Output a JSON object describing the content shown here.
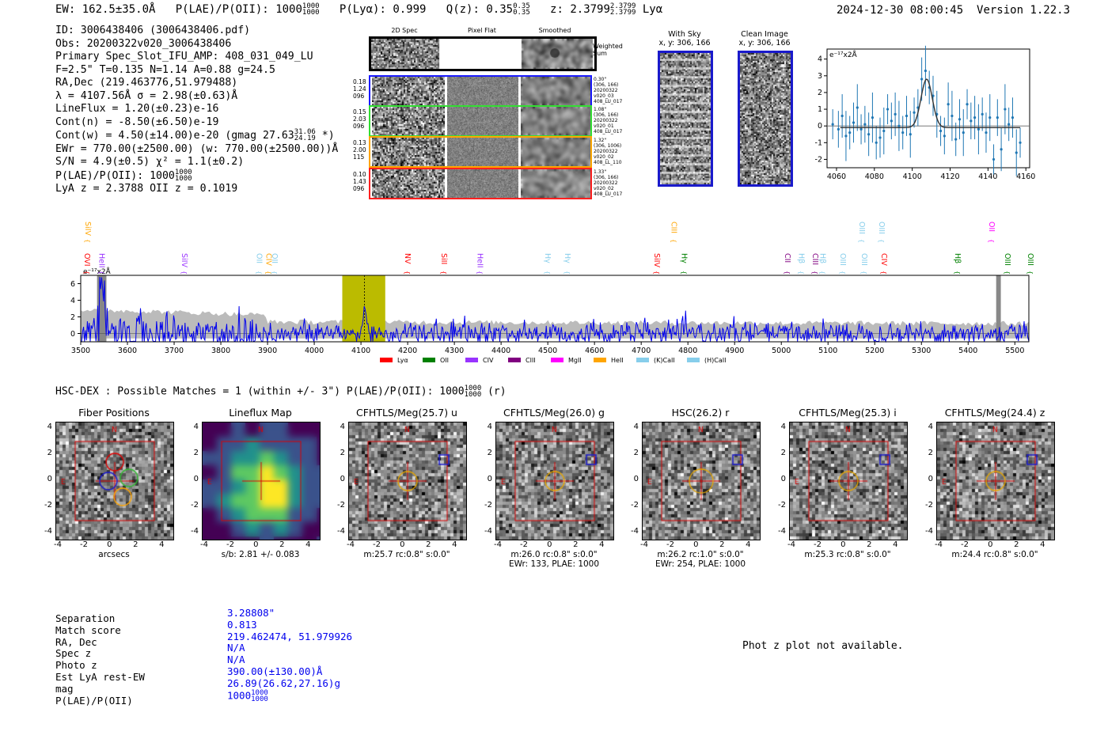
{
  "header": {
    "ew": "EW: 162.5±35.0Å",
    "plae_label": "P(LAE)/P(OII):",
    "plae_value": "1000",
    "plae_hi": "1000",
    "plae_lo": "1000",
    "plya": "P(Lyα): 0.999",
    "qz_label": "Q(z): 0.35",
    "qz_hi": "0.35",
    "qz_lo": "0.35",
    "z_label": "z: 2.3799",
    "z_hi": "2.3799",
    "z_lo": "2.3799",
    "z_line": "Lyα",
    "timestamp": "2024-12-30 08:00:45",
    "version": "Version 1.22.3"
  },
  "info": {
    "id": "ID: 3006438406 (3006438406.pdf)",
    "obs": "Obs: 20200322v020_3006438406",
    "primary": "Primary Spec_Slot_IFU_AMP: 408_031_049_LU",
    "params": "F=2.5\"  T=0.135  N=1.14  A=0.88  g=24.5",
    "radec": "RA,Dec (219.463776,51.979488)",
    "lambda": "λ = 4107.56Å  σ = 2.98(±0.63)Å",
    "lineflux": "LineFlux = 1.20(±0.23)e-16",
    "contn": "Cont(n) = -8.50(±6.50)e-19",
    "contw": "Cont(w) = 4.50(±14.00)e-20 (gmag 27.63",
    "contw_hi": "31.06",
    "contw_lo": "24.19",
    "contw_end": "*)",
    "ewr": "EWr = 770.00(±2500.00) (w: 770.00(±2500.00))Å",
    "sn": "S/N = 4.9(±0.5)  χ² = 1.1(±0.2)",
    "plae": "P(LAE)/P(OII): 1000",
    "plae_hi": "1000",
    "plae_lo": "1000",
    "lyaz": "LyA z = 2.3788  OII z = 0.1019"
  },
  "cutouts": {
    "col_2d": "2D Spec",
    "col_flat": "Pixel Flat",
    "col_smooth": "Smoothed",
    "weighted": "Weighted Sum",
    "rows": [
      {
        "left": [
          "0.18",
          "1.24",
          "096"
        ],
        "right": [
          "0.30\"",
          "(306, 166)",
          "20200322",
          "v020_03",
          "408_LU_017"
        ],
        "color": "#1a1aff"
      },
      {
        "left": [
          "0.15",
          "2.03",
          "096"
        ],
        "right": [
          "1.08\"",
          "(306, 166)",
          "20200322",
          "v020_01",
          "408_LU_017"
        ],
        "color": "#33dd33"
      },
      {
        "left": [
          "0.13",
          "2.00",
          "115"
        ],
        "right": [
          "1.32\"",
          "(306, 1006)",
          "20200322",
          "v020_02",
          "408_LL_110"
        ],
        "color": "#ffa500"
      },
      {
        "left": [
          "0.10",
          "1.43",
          "096"
        ],
        "right": [
          "1.33\"",
          "(306, 166)",
          "20200322",
          "v020_02",
          "408_LU_017"
        ],
        "color": "#ff2020"
      }
    ]
  },
  "sky_panels": {
    "with_sky": "With Sky",
    "with_sky_xy": "x, y: 306, 166",
    "clean": "Clean Image",
    "clean_xy": "x, y: 306, 166"
  },
  "line_fit": {
    "chart_data": {
      "type": "line",
      "unit_label": "e⁻¹⁷x2Å",
      "xlim": [
        4055,
        4162
      ],
      "ylim": [
        -2.5,
        4.6
      ],
      "xticks": [
        4060,
        4080,
        4100,
        4120,
        4140,
        4160
      ],
      "yticks": [
        -2,
        -1,
        0,
        1,
        2,
        3,
        4
      ],
      "x": [
        4058,
        4061,
        4063,
        4065,
        4067,
        4069,
        4071,
        4073,
        4075,
        4077,
        4079,
        4081,
        4083,
        4085,
        4087,
        4089,
        4091,
        4093,
        4095,
        4097,
        4099,
        4101,
        4103,
        4105,
        4107,
        4109,
        4111,
        4113,
        4115,
        4117,
        4119,
        4121,
        4123,
        4125,
        4127,
        4129,
        4131,
        4133,
        4135,
        4137,
        4139,
        4141,
        4143,
        4145,
        4147,
        4149,
        4151,
        4153,
        4155,
        4157
      ],
      "y": [
        0.1,
        -0.2,
        0.6,
        -0.6,
        -0.4,
        0.2,
        1.1,
        -0.2,
        0.1,
        -0.5,
        0.5,
        -1.0,
        -0.7,
        -0.3,
        1.0,
        0.3,
        0.7,
        0.0,
        -0.4,
        0.6,
        -0.5,
        0.8,
        1.1,
        2.8,
        3.3,
        2.3,
        1.8,
        0.7,
        -0.3,
        -0.6,
        1.3,
        0.6,
        -0.8,
        0.4,
        -0.4,
        1.3,
        0.3,
        0.5,
        -0.2,
        0.7,
        -0.4,
        0.5,
        -2.0,
        0.5,
        -1.4,
        1.0,
        0.1,
        0.5,
        -1.6,
        -1.0
      ],
      "model_center": 4107.6,
      "model_sigma": 2.98,
      "model_amp": 2.9
    }
  },
  "spectrum": {
    "chart_data": {
      "type": "line",
      "unit_label": "e⁻¹⁷x2Å",
      "xlim": [
        3500,
        5530
      ],
      "ylim": [
        -1,
        7
      ],
      "xticks": [
        3500,
        3600,
        3700,
        3800,
        3900,
        4000,
        4100,
        4200,
        4300,
        4400,
        4500,
        4600,
        4700,
        4800,
        4900,
        5000,
        5100,
        5200,
        5300,
        5400,
        5500
      ],
      "yticks": [
        0,
        2,
        4,
        6
      ],
      "highlight": [
        4060,
        4152
      ],
      "marker": 4107.56,
      "legend": [
        {
          "label": "Lyα",
          "color": "#ff0000"
        },
        {
          "label": "OII",
          "color": "#008000"
        },
        {
          "label": "CIV",
          "color": "#9933ff"
        },
        {
          "label": "CIII",
          "color": "#800080"
        },
        {
          "label": "MgII",
          "color": "#ff00ff"
        },
        {
          "label": "HeII",
          "color": "#ffa500"
        },
        {
          "label": "(K)CaII",
          "color": "#87ceeb"
        },
        {
          "label": "(H)CaII",
          "color": "#87ceeb"
        }
      ],
      "lines_upper": [
        {
          "label": "SiIV",
          "x": 3505,
          "color": "#ffa500"
        },
        {
          "label": "CIII",
          "x": 4760,
          "color": "#ffa500"
        },
        {
          "label": "OIII",
          "x": 5162,
          "color": "#87ceeb"
        },
        {
          "label": "OIII",
          "x": 5205,
          "color": "#87ceeb"
        },
        {
          "label": "OII",
          "x": 5440,
          "color": "#ff00ff"
        }
      ],
      "lines_lower": [
        {
          "label": "OVI",
          "x": 3500,
          "color": "#ff0000"
        },
        {
          "label": "HeII",
          "x": 3535,
          "color": "#9933ff"
        },
        {
          "label": "SiIV",
          "x": 3712,
          "color": "#9933ff"
        },
        {
          "label": "OII",
          "x": 3872,
          "color": "#87ceeb"
        },
        {
          "label": "CIV",
          "x": 3892,
          "color": "#ffa500"
        },
        {
          "label": "OII",
          "x": 3905,
          "color": "#87ceeb"
        },
        {
          "label": "NV",
          "x": 4190,
          "color": "#ff0000"
        },
        {
          "label": "SiII",
          "x": 4268,
          "color": "#ff0000"
        },
        {
          "label": "HeII",
          "x": 4345,
          "color": "#9933ff"
        },
        {
          "label": "Hγ",
          "x": 4490,
          "color": "#87ceeb"
        },
        {
          "label": "Hγ",
          "x": 4532,
          "color": "#87ceeb"
        },
        {
          "label": "SiIV",
          "x": 4723,
          "color": "#ff0000"
        },
        {
          "label": "Hγ",
          "x": 4782,
          "color": "#008000"
        },
        {
          "label": "CII",
          "x": 5003,
          "color": "#800080"
        },
        {
          "label": "Hβ",
          "x": 5033,
          "color": "#87ceeb"
        },
        {
          "label": "CIII",
          "x": 5062,
          "color": "#800080"
        },
        {
          "label": "Hβ",
          "x": 5078,
          "color": "#87ceeb"
        },
        {
          "label": "OIII",
          "x": 5122,
          "color": "#87ceeb"
        },
        {
          "label": "OIII",
          "x": 5167,
          "color": "#87ceeb"
        },
        {
          "label": "CIV",
          "x": 5210,
          "color": "#ff0000"
        },
        {
          "label": "Hβ",
          "x": 5367,
          "color": "#008000"
        },
        {
          "label": "OIII",
          "x": 5474,
          "color": "#008000"
        },
        {
          "label": "OIII",
          "x": 5524,
          "color": "#008000"
        }
      ]
    }
  },
  "matches": {
    "header": "HSC-DEX : Possible Matches = 1 (within +/- 3\")  P(LAE)/P(OII): 1000",
    "header_hi": "1000",
    "header_lo": "1000",
    "header_end": "(r)",
    "panels": [
      {
        "title": "Fiber Positions",
        "sub1": "arcsecs",
        "sub2": "",
        "kind": "fiber"
      },
      {
        "title": "Lineflux Map",
        "sub1": "s/b: 2.81 +/- 0.083",
        "sub2": "",
        "kind": "flux"
      },
      {
        "title": "CFHTLS/Meg(25.7) u",
        "sub1": "m:25.7 rc:0.8\"  s:0.0\"",
        "sub2": "",
        "kind": "img"
      },
      {
        "title": "CFHTLS/Meg(26.0) g",
        "sub1": "m:26.0 rc:0.8\"  s:0.0\"",
        "sub2": "EWr: 133, PLAE: 1000",
        "kind": "img"
      },
      {
        "title": "HSC(26.2) r",
        "sub1": "m:26.2 rc:1.0\"  s:0.0\"",
        "sub2": "EWr: 254, PLAE: 1000",
        "kind": "img"
      },
      {
        "title": "CFHTLS/Meg(25.3) i",
        "sub1": "m:25.3 rc:0.8\"  s:0.0\"",
        "sub2": "",
        "kind": "img"
      },
      {
        "title": "CFHTLS/Meg(24.4) z",
        "sub1": "m:24.4 rc:0.8\"  s:0.0\"",
        "sub2": "",
        "kind": "img"
      }
    ],
    "ticks": [
      "-4",
      "-2",
      "0",
      "2",
      "4"
    ],
    "north": "N",
    "east": "E"
  },
  "summary": {
    "labels": [
      "Separation",
      "Match score",
      "RA, Dec",
      "Spec z",
      "Photo z",
      "Est LyA rest-EW",
      "mag",
      "P(LAE)/P(OII)"
    ],
    "values": [
      "3.28808\"",
      "0.813",
      "219.462474, 51.979926",
      "N/A",
      "N/A",
      "390.00(±130.00)Å",
      "26.89(26.62,27.16)g",
      "1000"
    ],
    "plae_hi": "1000",
    "plae_lo": "1000"
  },
  "photz": "Phot z plot not available.",
  "colors": {
    "blue": "#0000ee",
    "red": "#dd0000",
    "yellow_band": "#bbbb00",
    "grey_fill": "#bbbbbb"
  }
}
